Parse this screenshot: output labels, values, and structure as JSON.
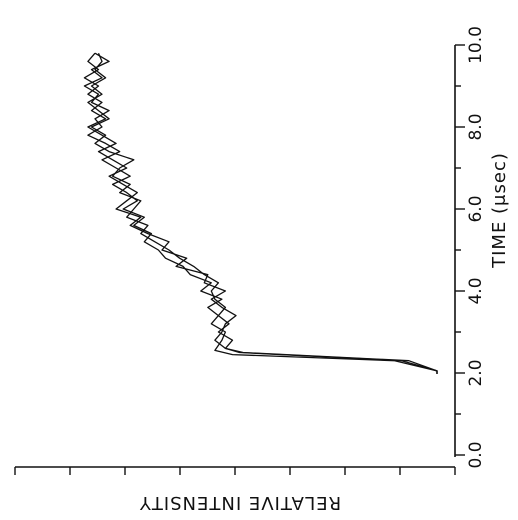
{
  "chart_data": {
    "type": "line",
    "orientation": "rotated-90-cw",
    "xlabel": "TIME (μsec)",
    "ylabel": "RELATIVE INTENSITY",
    "xlim": [
      0.0,
      10.0
    ],
    "xticks": [
      "0.0",
      "2.0",
      "4.0",
      "6.0",
      "8.0",
      "10.0"
    ],
    "grid": false,
    "legend": "none",
    "line_color": "#111111",
    "series": [
      {
        "x": [
          2.05,
          2.3,
          2.5,
          2.6,
          2.8,
          3.0,
          3.2,
          3.4,
          3.6,
          3.8,
          4.0,
          4.2,
          4.4,
          4.6,
          4.8,
          5.0,
          5.2,
          5.4,
          5.6,
          5.8,
          6.0,
          6.2,
          6.4,
          6.6,
          6.8,
          7.0,
          7.2,
          7.4,
          7.6,
          7.8,
          8.0,
          8.2,
          8.4,
          8.6,
          8.8,
          9.0,
          9.2,
          9.4,
          9.6,
          9.8
        ],
        "y": [
          0.0,
          0.1,
          0.56,
          0.6,
          0.58,
          0.62,
          0.59,
          0.62,
          0.6,
          0.63,
          0.64,
          0.62,
          0.66,
          0.69,
          0.73,
          0.76,
          0.8,
          0.84,
          0.82,
          0.88,
          0.86,
          0.84,
          0.9,
          0.87,
          0.92,
          0.9,
          0.86,
          0.93,
          0.97,
          0.94,
          0.98,
          0.93,
          0.96,
          0.99,
          0.95,
          0.98,
          0.94,
          0.97,
          0.95,
          0.96
        ]
      },
      {
        "x": [
          2.05,
          2.3,
          2.45,
          2.55,
          2.8,
          3.0,
          3.2,
          3.4,
          3.6,
          3.8,
          4.0,
          4.2,
          4.4,
          4.6,
          4.8,
          5.0,
          5.2,
          5.4,
          5.6,
          5.8,
          6.0,
          6.2,
          6.4,
          6.6,
          6.8,
          7.0,
          7.2,
          7.4,
          7.6,
          7.8,
          8.0,
          8.2,
          8.4,
          8.6,
          8.8,
          9.0,
          9.2,
          9.4,
          9.6,
          9.8
        ],
        "y": [
          0.0,
          0.12,
          0.58,
          0.63,
          0.61,
          0.6,
          0.64,
          0.62,
          0.65,
          0.61,
          0.67,
          0.64,
          0.7,
          0.72,
          0.77,
          0.79,
          0.83,
          0.81,
          0.86,
          0.83,
          0.89,
          0.85,
          0.88,
          0.92,
          0.87,
          0.91,
          0.95,
          0.9,
          0.94,
          0.99,
          0.95,
          0.97,
          0.93,
          0.98,
          0.96,
          1.0,
          0.95,
          0.98,
          0.93,
          0.97
        ]
      },
      {
        "x": [
          2.05,
          2.3,
          2.5,
          2.6,
          2.8,
          3.0,
          3.2,
          3.4,
          3.6,
          3.8,
          4.0,
          4.2,
          4.4,
          4.6,
          4.8,
          5.0,
          5.2,
          5.4,
          5.6,
          5.8,
          6.0,
          6.2,
          6.4,
          6.6,
          6.8,
          7.0,
          7.2,
          7.4,
          7.6,
          7.8,
          8.0,
          8.2,
          8.4,
          8.6,
          8.8,
          9.0,
          9.2,
          9.4,
          9.6,
          9.8
        ],
        "y": [
          0.0,
          0.08,
          0.55,
          0.6,
          0.63,
          0.61,
          0.6,
          0.57,
          0.61,
          0.64,
          0.6,
          0.66,
          0.65,
          0.74,
          0.71,
          0.78,
          0.76,
          0.82,
          0.87,
          0.84,
          0.91,
          0.88,
          0.85,
          0.89,
          0.93,
          0.88,
          0.92,
          0.96,
          0.91,
          0.95,
          0.99,
          0.94,
          0.98,
          0.95,
          0.99,
          0.96,
          1.0,
          0.96,
          0.99,
          0.97
        ]
      }
    ]
  }
}
